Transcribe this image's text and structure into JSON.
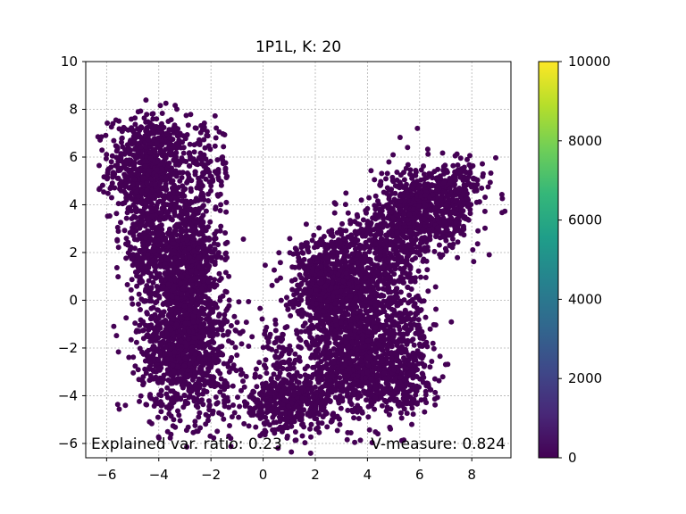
{
  "chart_data": {
    "type": "scatter",
    "title": "1P1L, K: 20",
    "xlabel": "",
    "ylabel": "",
    "xlim": [
      -6.8,
      9.5
    ],
    "ylim": [
      -6.6,
      10
    ],
    "x_ticks": [
      -6,
      -4,
      -2,
      0,
      2,
      4,
      6,
      8
    ],
    "y_ticks": [
      -6,
      -4,
      -2,
      0,
      2,
      4,
      6,
      8,
      10
    ],
    "grid": true,
    "point_color": "#440154",
    "annotations": {
      "left": "Explained var. ratio: 0.23",
      "right": "V-measure: 0.824"
    },
    "colorbar": {
      "min": 0,
      "max": 10000,
      "ticks": [
        0,
        2000,
        4000,
        6000,
        8000,
        10000
      ],
      "colormap": "viridis",
      "stops": [
        "#440154",
        "#482878",
        "#3e4989",
        "#31688e",
        "#26828e",
        "#1f9e89",
        "#35b779",
        "#6ece58",
        "#b5de2b",
        "#fde725"
      ]
    },
    "clusters": [
      {
        "cx": -4.4,
        "cy": 5.6,
        "sx": 0.75,
        "sy": 1.1,
        "n": 700
      },
      {
        "cx": -3.0,
        "cy": 2.0,
        "sx": 0.7,
        "sy": 1.3,
        "n": 700
      },
      {
        "cx": -3.0,
        "cy": -1.8,
        "sx": 0.85,
        "sy": 1.5,
        "n": 1200
      },
      {
        "cx": -4.5,
        "cy": 2.5,
        "sx": 0.5,
        "sy": 1.3,
        "n": 250
      },
      {
        "cx": -2.2,
        "cy": 5.5,
        "sx": 0.5,
        "sy": 0.9,
        "n": 120
      },
      {
        "cx": 0.9,
        "cy": -4.3,
        "sx": 0.9,
        "sy": 0.6,
        "n": 450
      },
      {
        "cx": 0.6,
        "cy": -2.0,
        "sx": 0.4,
        "sy": 1.0,
        "n": 80
      },
      {
        "cx": 3.3,
        "cy": 0.5,
        "sx": 0.9,
        "sy": 1.3,
        "n": 900
      },
      {
        "cx": 3.6,
        "cy": -2.6,
        "sx": 0.9,
        "sy": 1.2,
        "n": 800
      },
      {
        "cx": 5.3,
        "cy": -3.2,
        "sx": 0.6,
        "sy": 0.7,
        "n": 250
      },
      {
        "cx": 2.1,
        "cy": 0.8,
        "sx": 0.6,
        "sy": 1.0,
        "n": 250
      },
      {
        "cx": 6.3,
        "cy": 3.8,
        "sx": 0.9,
        "sy": 0.9,
        "n": 650
      },
      {
        "cx": 5.0,
        "cy": 2.2,
        "sx": 0.6,
        "sy": 0.9,
        "n": 300
      },
      {
        "cx": 7.5,
        "cy": 4.8,
        "sx": 0.5,
        "sy": 0.6,
        "n": 120
      },
      {
        "cx": 5.6,
        "cy": -1.0,
        "sx": 0.5,
        "sy": 0.8,
        "n": 120
      }
    ]
  }
}
